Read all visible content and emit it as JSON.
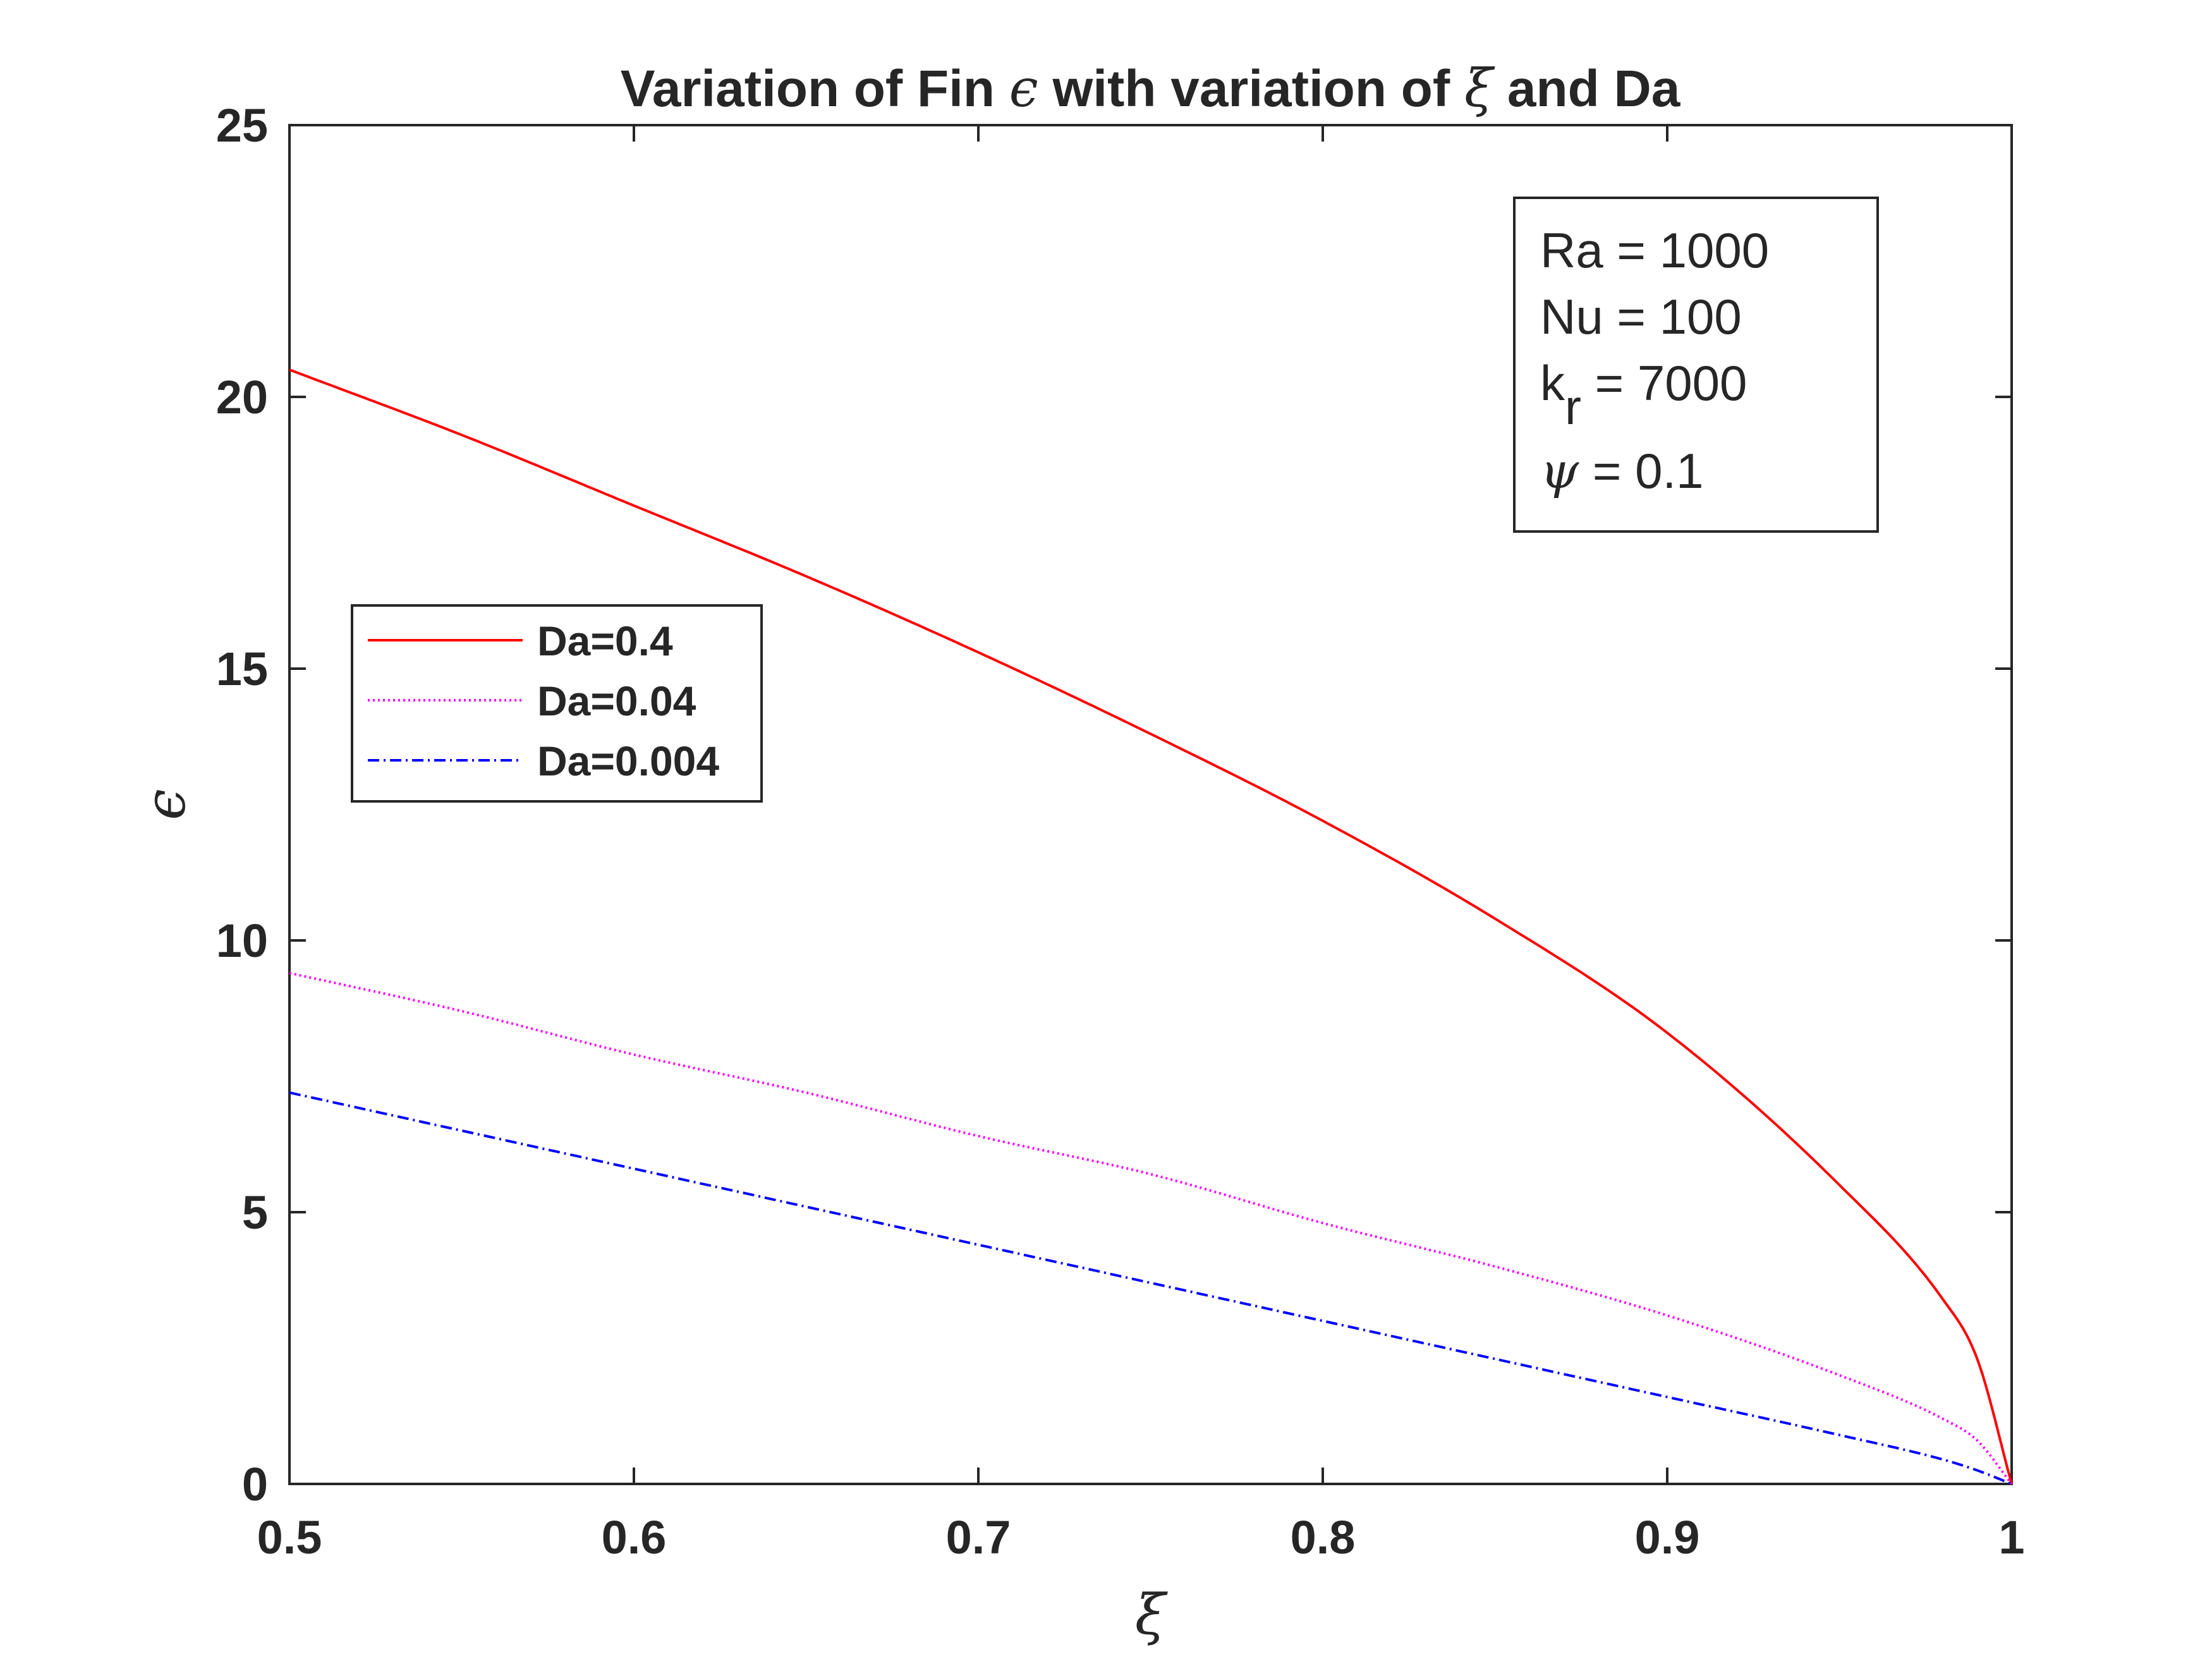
{
  "chart_data": {
    "type": "line",
    "title": {
      "prefix": "Variation of Fin ",
      "sym1": "ϵ",
      "middle": " with variation of ",
      "sym2": "ξ",
      "suffix": " and Da"
    },
    "xlabel": "ξ",
    "ylabel": "ϵ",
    "xlim": [
      0.5,
      1
    ],
    "ylim": [
      0,
      25
    ],
    "x_ticks": [
      0.5,
      0.6,
      0.7,
      0.8,
      0.9,
      1
    ],
    "x_tick_labels": [
      "0.5",
      "0.6",
      "0.7",
      "0.8",
      "0.9",
      "1"
    ],
    "y_ticks": [
      0,
      5,
      10,
      15,
      20,
      25
    ],
    "y_tick_labels": [
      "0",
      "5",
      "10",
      "15",
      "20",
      "25"
    ],
    "grid": false,
    "legend_position": "middle-left",
    "series": [
      {
        "name": "Da=0.4",
        "color": "#ff0000",
        "style": "solid",
        "x": [
          0.5,
          0.55,
          0.6,
          0.65,
          0.7,
          0.75,
          0.8,
          0.85,
          0.9,
          0.95,
          0.98,
          0.99,
          1.0
        ],
        "y": [
          20.5,
          19.3,
          18.0,
          16.7,
          15.3,
          13.8,
          12.2,
          10.4,
          8.3,
          5.5,
          3.4,
          2.3,
          0.0
        ]
      },
      {
        "name": "Da=0.04",
        "color": "#ff00ff",
        "style": "dotted",
        "x": [
          0.5,
          0.55,
          0.6,
          0.65,
          0.7,
          0.75,
          0.8,
          0.85,
          0.9,
          0.95,
          0.98,
          0.99,
          1.0
        ],
        "y": [
          9.4,
          8.7,
          7.9,
          7.2,
          6.4,
          5.7,
          4.8,
          4.0,
          3.1,
          2.0,
          1.2,
          0.8,
          0.0
        ]
      },
      {
        "name": "Da=0.004",
        "color": "#0000ff",
        "style": "dashdot",
        "x": [
          0.5,
          0.55,
          0.6,
          0.65,
          0.7,
          0.75,
          0.8,
          0.85,
          0.9,
          0.95,
          0.98,
          0.99,
          1.0
        ],
        "y": [
          7.2,
          6.5,
          5.8,
          5.1,
          4.4,
          3.7,
          3.0,
          2.3,
          1.6,
          0.9,
          0.45,
          0.25,
          0.0
        ]
      }
    ],
    "annotation": {
      "ra": "Ra = 1000",
      "nu": "Nu = 100",
      "kr_base": "k",
      "kr_sub": "r",
      "kr_value": " = 7000",
      "psi_sym": "ψ",
      "psi_value": " = 0.1"
    }
  }
}
